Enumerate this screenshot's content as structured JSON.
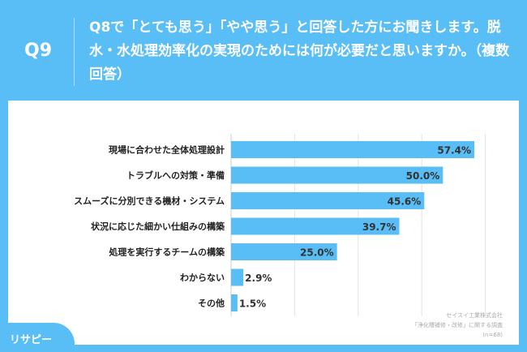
{
  "header": {
    "question_number": "Q9",
    "question": "Q8で「とても思う」「やや思う」と回答した方にお聞きします。脱水・水処理効率化の実現のためには何が必要だと思いますか。（複数回答）"
  },
  "source": {
    "line1": "セイスイ工業株式会社",
    "line2": "「浄化槽補修・改修」に関する調査",
    "line3": "(n=68)"
  },
  "logo": "リサピー",
  "colors": {
    "bar": "#59bdf6",
    "background": "#59bdf6",
    "text": "#222222"
  },
  "chart_data": {
    "type": "bar",
    "orientation": "horizontal",
    "unit": "%",
    "categories": [
      "現場に合わせた全体処理設計",
      "トラブルへの対策・準備",
      "スムーズに分別できる機材・システム",
      "状況に応じた細かい仕組みの構築",
      "処理を実行するチームの構築",
      "わからない",
      "その他"
    ],
    "values": [
      57.4,
      50.0,
      45.6,
      39.7,
      25.0,
      2.9,
      1.5
    ],
    "data_labels": [
      "57.4%",
      "50.0%",
      "45.6%",
      "39.7%",
      "25.0%",
      "2.9%",
      "1.5%"
    ]
  }
}
